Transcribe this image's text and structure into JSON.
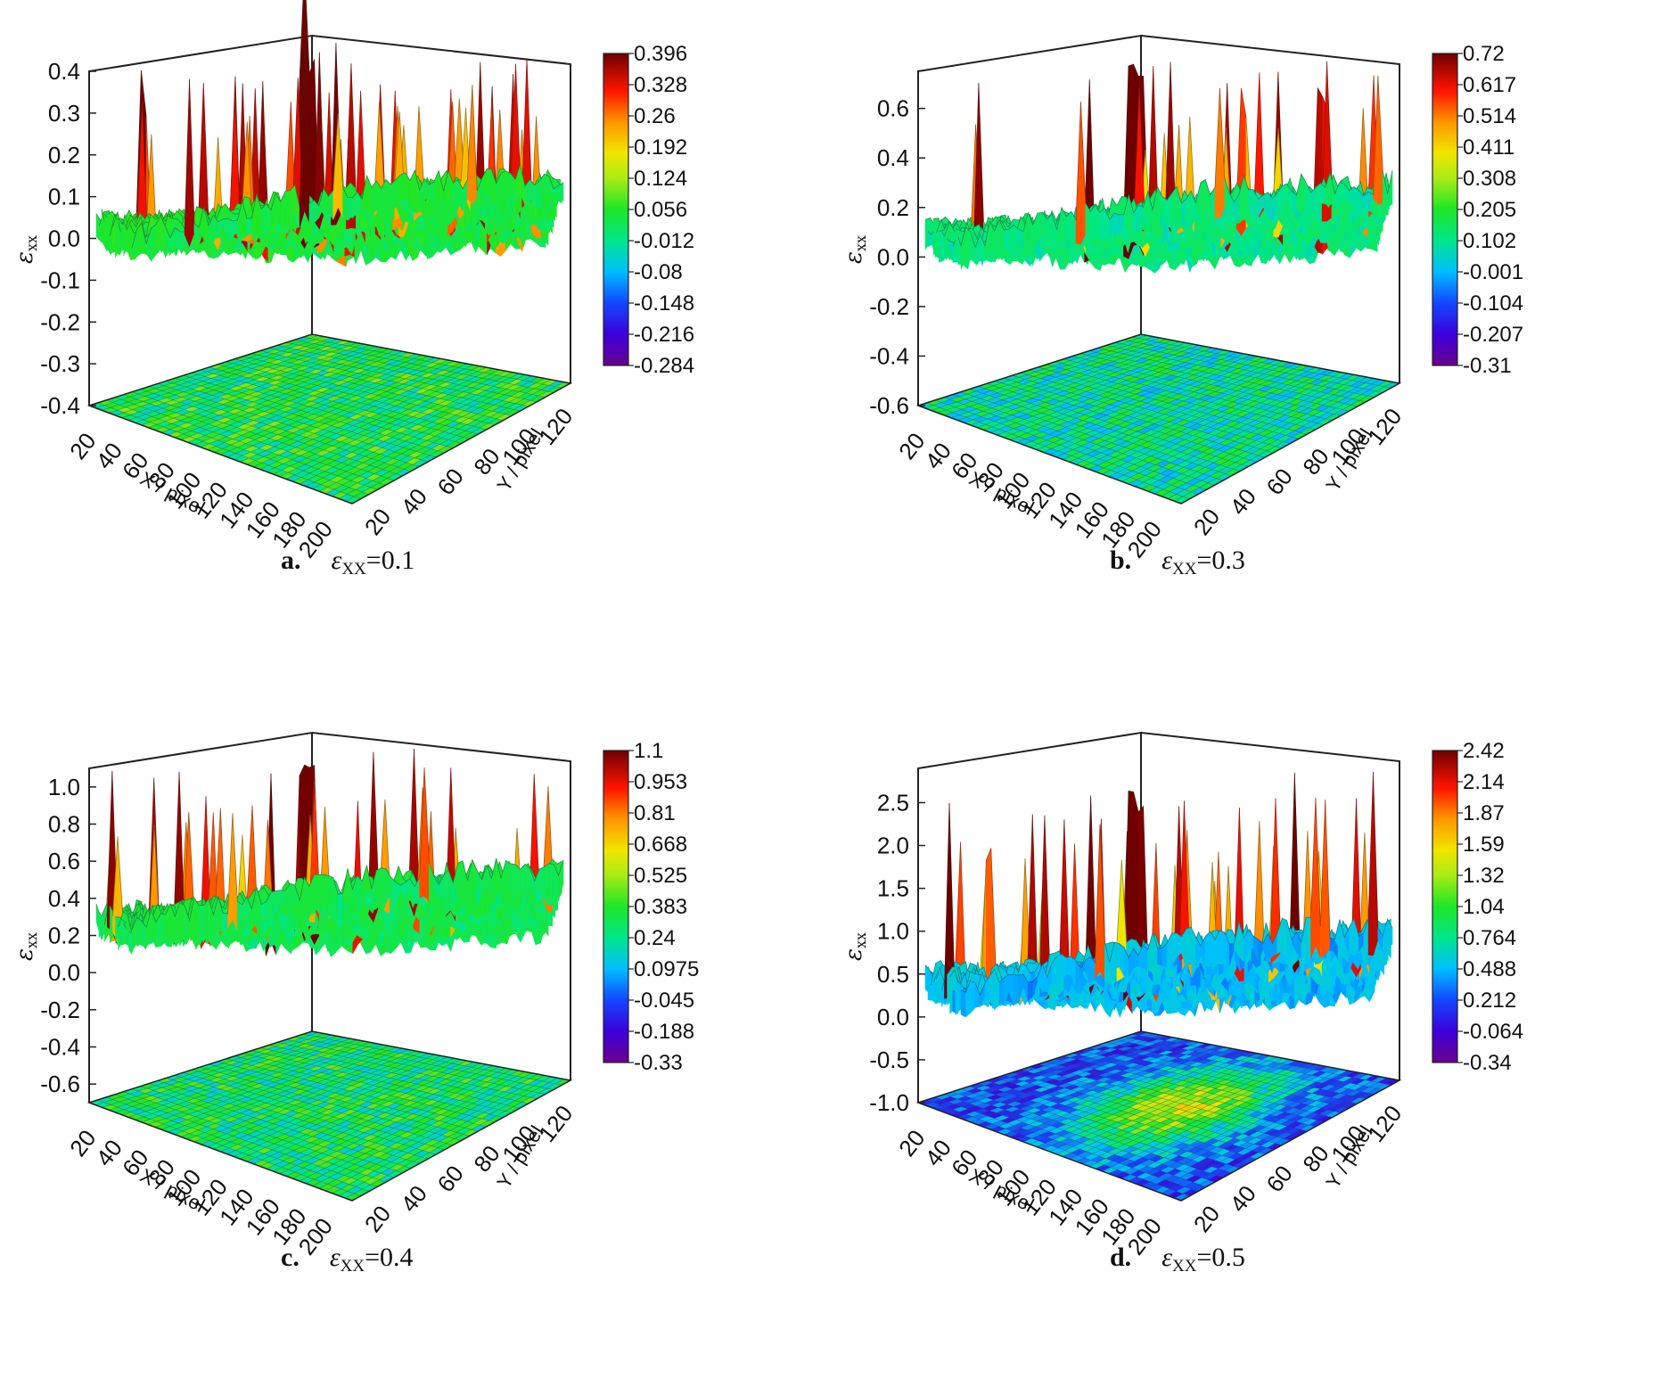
{
  "chart_data": [
    {
      "type": "surface",
      "caption_letter": "a.",
      "caption_symbol": "ε",
      "caption_subscript": "XX",
      "caption_value": "=0.1",
      "zlabel": "ε",
      "zlabel_sub": "xx",
      "xlabel": "X / pixel",
      "ylabel": "Y / pixel",
      "z_ticks": [
        "0.4",
        "0.3",
        "0.2",
        "0.1",
        "0.0",
        "-0.1",
        "-0.2",
        "-0.3",
        "-0.4"
      ],
      "z_range": [
        -0.4,
        0.4
      ],
      "x_ticks": [
        "20",
        "40",
        "60",
        "80",
        "100",
        "120",
        "140",
        "160",
        "180",
        "200"
      ],
      "y_ticks": [
        "20",
        "40",
        "60",
        "80",
        "100",
        "120"
      ],
      "colorbar_ticks": [
        "0.396",
        "0.328",
        "0.26",
        "0.192",
        "0.124",
        "0.056",
        "-0.012",
        "-0.08",
        "-0.148",
        "-0.216",
        "-0.284"
      ],
      "colorbar_range": [
        -0.284,
        0.396
      ],
      "surface_baseline": 0.03,
      "peak_value": 0.396,
      "min_value": -0.284
    },
    {
      "type": "surface",
      "caption_letter": "b.",
      "caption_symbol": "ε",
      "caption_subscript": "XX",
      "caption_value": "=0.3",
      "zlabel": "ε",
      "zlabel_sub": "xx",
      "xlabel": "X / pixel",
      "ylabel": "Y / pixel",
      "z_ticks": [
        "0.6",
        "0.4",
        "0.2",
        "0.0",
        "-0.2",
        "-0.4",
        "-0.6"
      ],
      "z_range": [
        -0.6,
        0.75
      ],
      "x_ticks": [
        "20",
        "40",
        "60",
        "80",
        "100",
        "120",
        "140",
        "160",
        "180",
        "200"
      ],
      "y_ticks": [
        "20",
        "40",
        "60",
        "80",
        "100",
        "120"
      ],
      "colorbar_ticks": [
        "0.72",
        "0.617",
        "0.514",
        "0.411",
        "0.308",
        "0.205",
        "0.102",
        "-0.001",
        "-0.104",
        "-0.207",
        "-0.31"
      ],
      "colorbar_range": [
        -0.31,
        0.72
      ],
      "surface_baseline": 0.1,
      "peak_value": 0.72,
      "min_value": -0.31
    },
    {
      "type": "surface",
      "caption_letter": "c.",
      "caption_symbol": "ε",
      "caption_subscript": "XX",
      "caption_value": "=0.4",
      "zlabel": "ε",
      "zlabel_sub": "xx",
      "xlabel": "X / pixel",
      "ylabel": "Y / pixel",
      "z_ticks": [
        "1.0",
        "0.8",
        "0.6",
        "0.4",
        "0.2",
        "0.0",
        "-0.2",
        "-0.4",
        "-0.6"
      ],
      "z_range": [
        -0.7,
        1.1
      ],
      "x_ticks": [
        "20",
        "40",
        "60",
        "80",
        "100",
        "120",
        "140",
        "160",
        "180",
        "200"
      ],
      "y_ticks": [
        "20",
        "40",
        "60",
        "80",
        "100",
        "120"
      ],
      "colorbar_ticks": [
        "1.1",
        "0.953",
        "0.81",
        "0.668",
        "0.525",
        "0.383",
        "0.24",
        "0.0975",
        "-0.045",
        "-0.188",
        "-0.33"
      ],
      "colorbar_range": [
        -0.33,
        1.1
      ],
      "surface_baseline": 0.3,
      "peak_value": 1.1,
      "min_value": -0.33
    },
    {
      "type": "surface",
      "caption_letter": "d.",
      "caption_symbol": "ε",
      "caption_subscript": "XX",
      "caption_value": "=0.5",
      "zlabel": "ε",
      "zlabel_sub": "xx",
      "xlabel": "X / pixel",
      "ylabel": "Y / pixel",
      "z_ticks": [
        "2.5",
        "2.0",
        "1.5",
        "1.0",
        "0.5",
        "0.0",
        "-0.5",
        "-1.0"
      ],
      "z_range": [
        -1.0,
        2.9
      ],
      "x_ticks": [
        "20",
        "40",
        "60",
        "80",
        "100",
        "120",
        "140",
        "160",
        "180",
        "200"
      ],
      "y_ticks": [
        "20",
        "40",
        "60",
        "80",
        "100",
        "120"
      ],
      "colorbar_ticks": [
        "2.42",
        "2.14",
        "1.87",
        "1.59",
        "1.32",
        "1.04",
        "0.764",
        "0.488",
        "0.212",
        "-0.064",
        "-0.34"
      ],
      "colorbar_range": [
        -0.34,
        2.42
      ],
      "surface_baseline": 0.45,
      "peak_value": 2.42,
      "min_value": -0.34
    }
  ]
}
